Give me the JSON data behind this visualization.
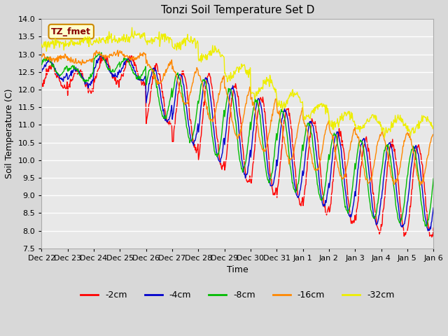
{
  "title": "Tonzi Soil Temperature Set D",
  "xlabel": "Time",
  "ylabel": "Soil Temperature (C)",
  "ylim": [
    7.5,
    14.0
  ],
  "yticks": [
    7.5,
    8.0,
    8.5,
    9.0,
    9.5,
    10.0,
    10.5,
    11.0,
    11.5,
    12.0,
    12.5,
    13.0,
    13.5,
    14.0
  ],
  "colors": {
    "-2cm": "#ff0000",
    "-4cm": "#0000cc",
    "-8cm": "#00bb00",
    "-16cm": "#ff8800",
    "-32cm": "#eeee00"
  },
  "legend_label": "TZ_fmet",
  "legend_bg": "#ffffcc",
  "legend_border": "#cc8800",
  "legend_text_color": "#880000",
  "bg_color": "#d8d8d8",
  "plot_bg": "#e8e8e8",
  "n_days": 15,
  "points_per_day": 48,
  "xlabels": [
    "Dec 22",
    "Dec 23",
    "Dec 24",
    "Dec 25",
    "Dec 26",
    "Dec 27",
    "Dec 28",
    "Dec 29",
    "Dec 30",
    "Dec 31",
    "Jan 1",
    "Jan 2",
    "Jan 3",
    "Jan 4",
    "Jan 5",
    "Jan 6"
  ],
  "figsize": [
    6.4,
    4.8
  ],
  "dpi": 100
}
